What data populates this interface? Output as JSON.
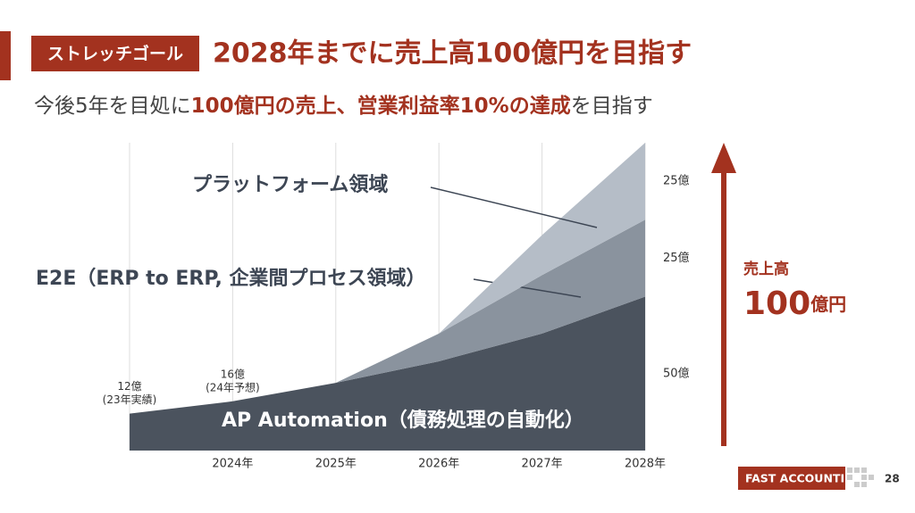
{
  "header": {
    "badge": "ストレッチゴール",
    "title": "2028年までに売上高100億円を目指す",
    "subtitle": [
      {
        "text": "今後5年を目処に",
        "emphasis": false
      },
      {
        "text": "100億円の売上、営業利益率10%の達成",
        "emphasis": true
      },
      {
        "text": "を目指す",
        "emphasis": false
      }
    ]
  },
  "chart_data": {
    "type": "stacked_area",
    "categories": [
      null,
      "2024年",
      "2025年",
      "2026年",
      "2027年",
      "2028年"
    ],
    "ylim": [
      0,
      100
    ],
    "grid": true,
    "series": [
      {
        "name": "AP Automation（債務処理の自動化）",
        "color": "#4b535e",
        "values": [
          12,
          16,
          22,
          29,
          38,
          50
        ],
        "value_labels": [
          "12億",
          "16億",
          null,
          null,
          null,
          "50億"
        ],
        "notes": [
          "(23年実績)",
          "(24年予想)",
          null,
          null,
          null,
          null
        ]
      },
      {
        "name": "E2E（ERP to ERP, 企業間プロセス領域）",
        "color": "#8a939e",
        "values": [
          null,
          null,
          0,
          9,
          19,
          25
        ],
        "value_labels": [
          null,
          null,
          null,
          null,
          null,
          "25億"
        ]
      },
      {
        "name": "プラットフォーム領域",
        "color": "#b5bdc7",
        "values": [
          null,
          null,
          null,
          0,
          13,
          25
        ],
        "value_labels": [
          null,
          null,
          null,
          null,
          null,
          "25億"
        ]
      }
    ]
  },
  "goal": {
    "label": "売上高",
    "value": "100",
    "unit": "億円"
  },
  "footer": {
    "logo": "FAST ACCOUNTING",
    "page": 28
  }
}
